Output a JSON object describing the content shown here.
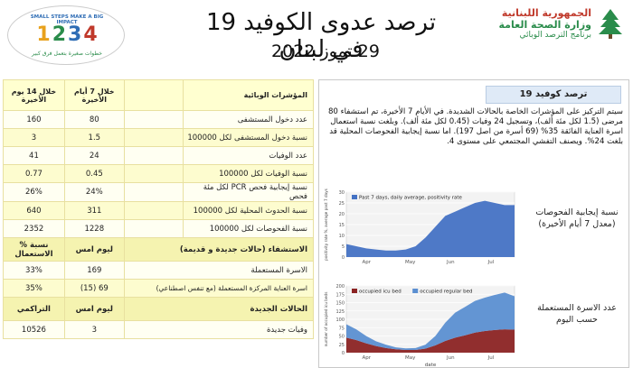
{
  "header": {
    "title": "ترصد عدوى الكوفيد 19 في لبنان",
    "date": "29 تموز 2022",
    "logo_left": {
      "top": "SMALL STEPS MAKE A BIG IMPACT",
      "digits": [
        "1",
        "2",
        "3",
        "4"
      ],
      "bottom": "خطوات صغيرة بتعمل فرق كبير"
    },
    "logo_right": {
      "line1": "الجمهورية اللبنانية",
      "line2": "وزارة الصحة العامة",
      "line3": "برنامج الترصد الوبائي"
    }
  },
  "table": {
    "headers": {
      "label": "المؤشرات الوبائية",
      "last7": "خلال 7 أيام الأخيرة",
      "last14": "خلال 14 يوم الأخيرة"
    },
    "rows": [
      {
        "label": "عدد دخول المستشفى",
        "last7": "80",
        "last14": "160"
      },
      {
        "label": "نسبة دخول المستشفى لكل 100000",
        "last7": "1.5",
        "last14": "3"
      },
      {
        "label": "عدد الوفيات",
        "last7": "24",
        "last14": "41"
      },
      {
        "label": "نسبة الوفيات لكل 100000",
        "last7": "0.45",
        "last14": "0.77"
      },
      {
        "label": "نسبة إيجابية فحص PCR لكل مئة فحص",
        "last7": "24%",
        "last14": "26%"
      },
      {
        "label": "نسبة الحدوث المحلية لكل 100000",
        "last7": "311",
        "last14": "640"
      },
      {
        "label": "نسبة الفحوصات لكل 100000",
        "last7": "1228",
        "last14": "2352"
      }
    ],
    "section2": {
      "label": "الاستشفاء (حالات جديدة و قديمة)",
      "today": "ليوم امس",
      "rate": "% نسبة الاستعمال"
    },
    "rows2": [
      {
        "label": "الاسرة المستعملة",
        "today": "169",
        "rate": "33%"
      },
      {
        "label": "اسرة العناية المركزة المستعملة (مع تنفس اصطناعي)",
        "today": "(15) 69",
        "rate": "35%"
      }
    ],
    "section3": {
      "label": "الحالات الجديدة",
      "today": "ليوم امس",
      "cum": "التراكمي"
    },
    "rows3": [
      {
        "label": "وفيات جديدة",
        "today": "3",
        "cum": "10526"
      }
    ]
  },
  "panel": {
    "heading": "ترصد كوفيد 19",
    "paragraph": "سيتم التركيز على المؤشرات الخاصة بالحالات الشديدة. في الأيام 7 الأخيرة، تم استشفاء 80 مرضى (1.5 لكل مئة ألف)، وتسجيل 24 وفيات (0.45 لكل مئة ألف). وبلغت نسبة استعمال اسرة العناية الفائقة 35% (69 أسرة من اصل 197). اما نسبة إيجابية الفحوصات المحلية قد بلغت 24%. ويصنف التفشي المجتمعي على مستوى 4.",
    "caption1": [
      "نسبة إيجابية الفحوصات",
      "(معدل 7 أيام الأخيرة)"
    ],
    "caption2": [
      "عدد الاسرة المستعملة",
      "حسب اليوم"
    ]
  },
  "chart_data": [
    {
      "type": "area",
      "legend": [
        "Past 7 days, daily average, positivity rate"
      ],
      "ylabel": "positivity rate %, average past 7 days",
      "ylim": [
        0,
        30
      ],
      "yticks": [
        0,
        5,
        10,
        15,
        20,
        25,
        30
      ],
      "xticks": [
        "Apr",
        "May",
        "Jun",
        "Jul"
      ],
      "x": [
        "Mar-15",
        "Mar-25",
        "Apr-05",
        "Apr-15",
        "Apr-25",
        "May-05",
        "May-15",
        "May-25",
        "Jun-05",
        "Jun-15",
        "Jun-25",
        "Jul-01",
        "Jul-05",
        "Jul-10",
        "Jul-15",
        "Jul-20",
        "Jul-25",
        "Jul-28"
      ],
      "values": [
        6,
        5,
        4,
        3.5,
        3,
        3,
        3.5,
        5,
        9,
        14,
        19,
        21,
        23,
        25,
        26,
        25,
        24,
        24
      ],
      "color": "#4472c4"
    },
    {
      "type": "area",
      "legend": [
        "occupied icu bed",
        "occupied regular bed"
      ],
      "ylabel": "number of occupied icu beds",
      "xlabel": "date",
      "ylim": [
        0,
        200
      ],
      "yticks": [
        0,
        25,
        50,
        75,
        100,
        125,
        150,
        175,
        200
      ],
      "xticks": [
        "Apr",
        "May",
        "Jun",
        "Jul"
      ],
      "x": [
        "Mar-15",
        "Mar-25",
        "Apr-05",
        "Apr-15",
        "Apr-25",
        "May-05",
        "May-15",
        "May-25",
        "Jun-05",
        "Jun-15",
        "Jun-25",
        "Jul-01",
        "Jul-05",
        "Jul-10",
        "Jul-15",
        "Jul-20",
        "Jul-25",
        "Jul-28"
      ],
      "series": [
        {
          "name": "occupied icu bed",
          "values": [
            45,
            38,
            28,
            20,
            14,
            10,
            8,
            8,
            12,
            22,
            35,
            45,
            52,
            60,
            65,
            68,
            70,
            69
          ],
          "color": "#8b2323"
        },
        {
          "name": "occupied regular bed",
          "values": [
            40,
            32,
            22,
            14,
            10,
            6,
            5,
            6,
            12,
            28,
            55,
            75,
            85,
            95,
            100,
            105,
            110,
            100
          ],
          "color": "#5b8fd1"
        }
      ]
    }
  ]
}
